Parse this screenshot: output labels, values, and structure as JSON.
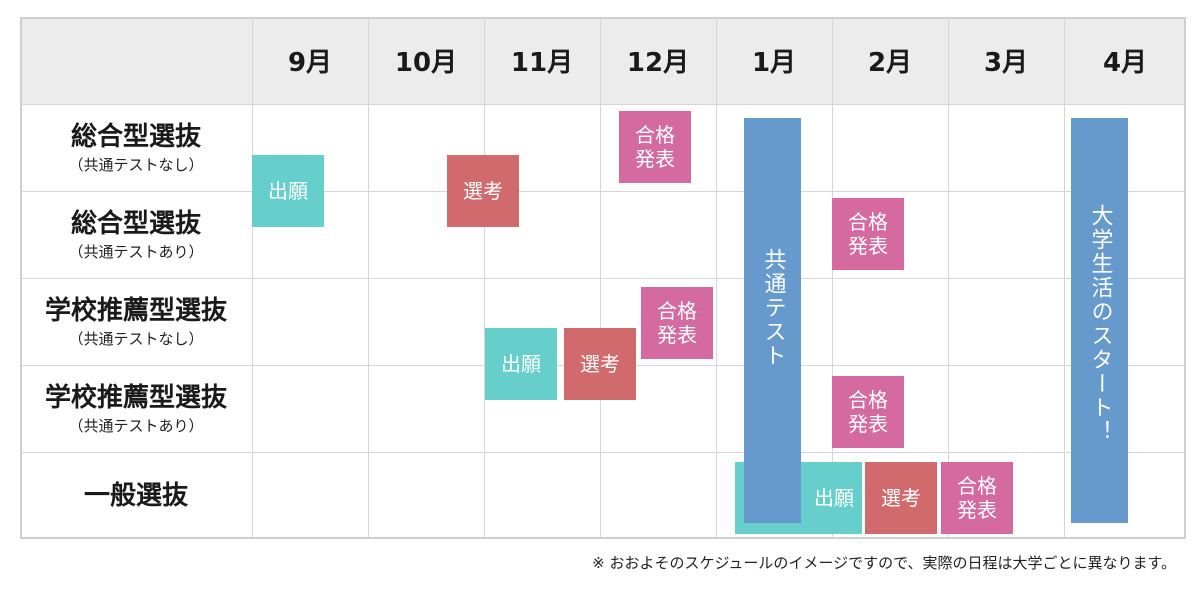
{
  "header": {
    "months": [
      "9月",
      "10月",
      "11月",
      "12月",
      "1月",
      "2月",
      "3月",
      "4月"
    ]
  },
  "rows": [
    {
      "title": "総合型選抜",
      "sub": "（共通テストなし）"
    },
    {
      "title": "総合型選抜",
      "sub": "（共通テストあり）"
    },
    {
      "title": "学校推薦型選抜",
      "sub": "（共通テストなし）"
    },
    {
      "title": "学校推薦型選抜",
      "sub": "（共通テストあり）"
    },
    {
      "title": "一般選抜",
      "sub": ""
    }
  ],
  "bars": {
    "application": "出願",
    "selection": "選考",
    "result": "合格\n発表",
    "common_test": "共通テスト",
    "start": "大学生活のスタート！"
  },
  "footnote": "※ おおよそのスケジュールのイメージですので、実際の日程は大学ごとに異なります。",
  "colors": {
    "application": "#66cfcc",
    "selection": "#d06a6c",
    "result": "#d46aa0",
    "common_test": "#6699cc",
    "header_bg": "#ececec"
  }
}
